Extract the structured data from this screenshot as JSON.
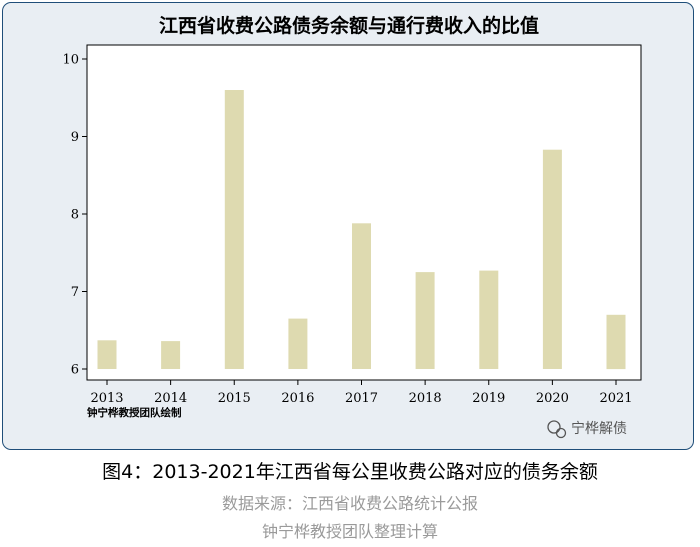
{
  "chart_data": {
    "type": "bar",
    "title": "江西省收费公路债务余额与通行费收入的比值",
    "categories": [
      "2013",
      "2014",
      "2015",
      "2016",
      "2017",
      "2018",
      "2019",
      "2020",
      "2021"
    ],
    "values": [
      6.37,
      6.36,
      9.6,
      6.65,
      7.88,
      7.25,
      7.27,
      8.83,
      6.7
    ],
    "ylim": [
      6,
      10
    ],
    "yticks": [
      6,
      7,
      8,
      9,
      10
    ],
    "bar_color": "#dedab0",
    "plot_background": "#ffffff",
    "grid": false,
    "credit": "钟宁桦教授团队绘制"
  },
  "watermark": "宁桦解债",
  "caption": "图4：2013-2021年江西省每公里收费公路对应的债务余额",
  "source": "数据来源：江西省收费公路统计公报",
  "credit_line": "钟宁桦教授团队整理计算"
}
